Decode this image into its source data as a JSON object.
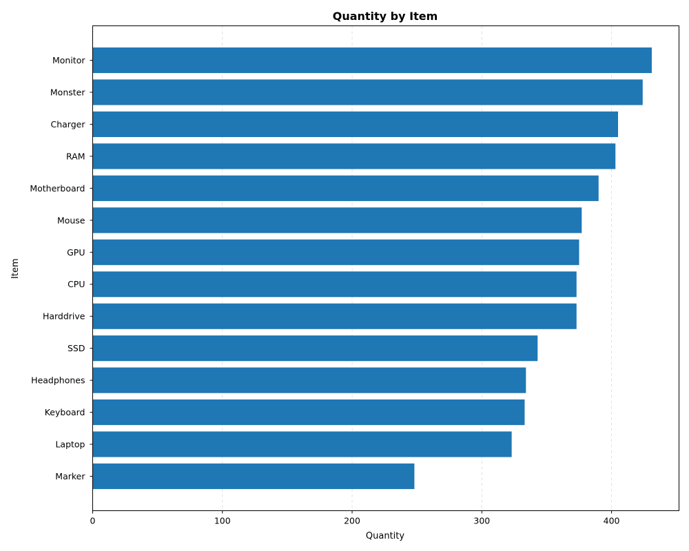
{
  "chart_data": {
    "type": "bar",
    "orientation": "horizontal",
    "title": "Quantity by Item",
    "xlabel": "Quantity",
    "ylabel": "Item",
    "xlim": [
      0,
      452
    ],
    "xticks": [
      0,
      100,
      200,
      300,
      400
    ],
    "grid": "x-dashed",
    "bar_color": "#1f77b4",
    "categories": [
      "Monitor",
      "Monster",
      "Charger",
      "RAM",
      "Motherboard",
      "Mouse",
      "GPU",
      "CPU",
      "Harddrive",
      "SSD",
      "Headphones",
      "Keyboard",
      "Laptop",
      "Marker"
    ],
    "values": [
      431,
      424,
      405,
      403,
      390,
      377,
      375,
      373,
      373,
      343,
      334,
      333,
      323,
      248
    ]
  }
}
